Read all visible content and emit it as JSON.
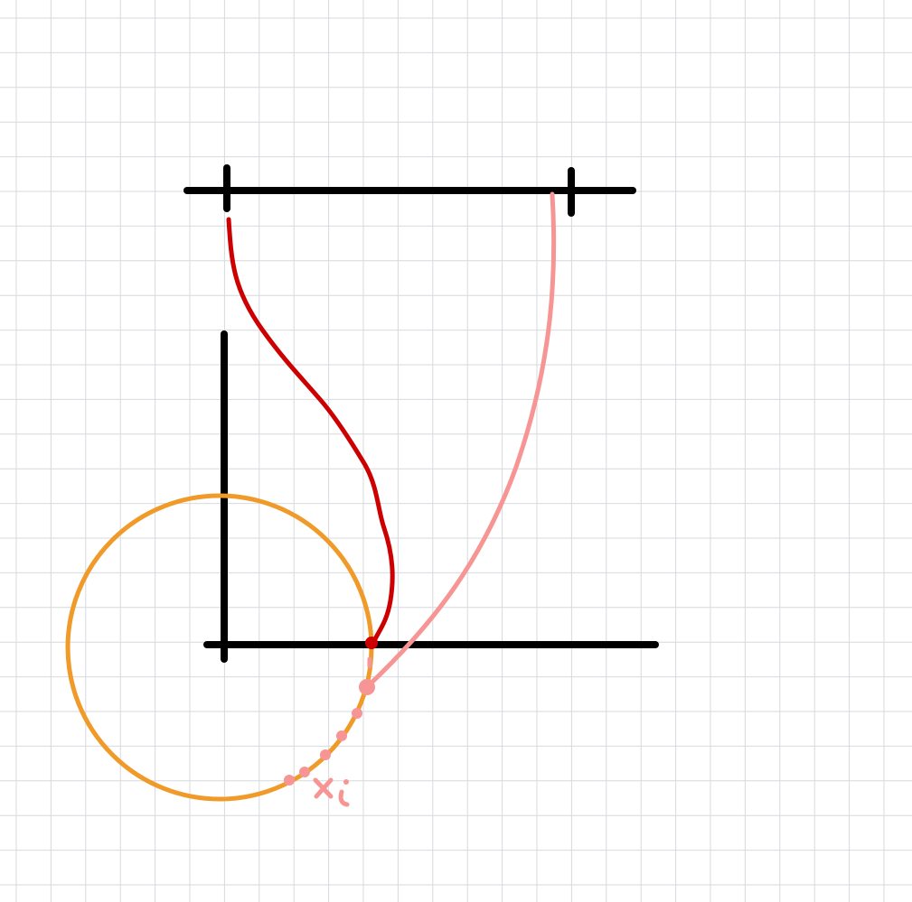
{
  "canvas": {
    "background": "#ffffff",
    "grid_color": "#d6d9de"
  },
  "colors": {
    "axes": "#000000",
    "circle": "#f09a2a",
    "dark_red_curve": "#cc0000",
    "pink_curve": "#f79595",
    "pink_dots": "#f79595",
    "handwritten_label": "#f79595"
  },
  "annotation": {
    "handwritten_label_text": "x i",
    "rendered_as": "handwriting"
  }
}
